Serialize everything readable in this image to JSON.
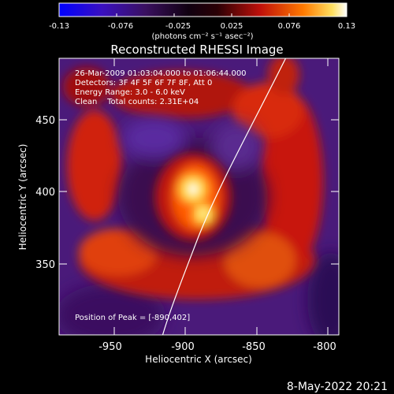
{
  "colorbar": {
    "tick_labels": [
      "-0.13",
      "-0.076",
      "-0.025",
      "0.025",
      "0.076",
      "0.13"
    ],
    "units_text": "(photons cm⁻² s⁻¹ asec⁻²)"
  },
  "image": {
    "title": "Reconstructed RHESSI Image",
    "info_lines": [
      "26-Mar-2009 01:03:04.000 to 01:06:44.000",
      "Detectors: 3F 4F 5F 6F 7F 8F, Att 0",
      "Energy Range: 3.0 - 6.0 keV",
      "Clean    Total counts: 2.31E+04"
    ],
    "peak_text": "Position of Peak = [-890,402]",
    "x_axis_label": "Heliocentric X (arcsec)",
    "y_axis_label": "Heliocentric Y (arcsec)",
    "x_tick_labels": [
      "-950",
      "-900",
      "-850",
      "-800"
    ],
    "y_tick_labels": [
      "450",
      "400",
      "350"
    ],
    "footer_date": "8-May-2022 20:21"
  },
  "colors": {
    "background": "#000000",
    "frame": "#ffffff",
    "colormap": [
      "#0000ff",
      "#4a0aa0",
      "#3a1a5a",
      "#000000",
      "#7a0a10",
      "#d01a0a",
      "#ff7a00",
      "#ffff66",
      "#ffffff"
    ]
  },
  "icons": [
    "colormap-gradient",
    "solar-limb-curve"
  ]
}
